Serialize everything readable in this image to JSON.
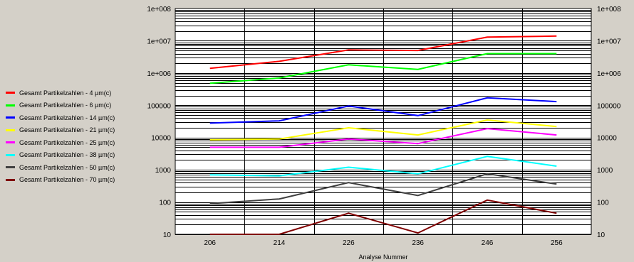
{
  "chart_data": {
    "type": "line",
    "yscale": "log",
    "ylim": [
      10,
      100000000
    ],
    "xlabel": "Analyse Nummer",
    "ylabel": "",
    "grid": true,
    "legend_position": "left",
    "categories": [
      "206",
      "214",
      "226",
      "236",
      "246",
      "256"
    ],
    "yticks": [
      "10",
      "100",
      "1000",
      "10000",
      "100000",
      "1e+006",
      "1e+007",
      "1e+008"
    ],
    "series": [
      {
        "name": "Gesamt Partikelzahlen - 4 µm(c)",
        "color": "#ff0000",
        "values": [
          1400000,
          2300000,
          5200000,
          5000000,
          13000000,
          14000000
        ]
      },
      {
        "name": "Gesamt Partikelzahlen - 6 µm(c)",
        "color": "#00ff00",
        "values": [
          480000,
          700000,
          1800000,
          1300000,
          4000000,
          4000000
        ]
      },
      {
        "name": "Gesamt Partikelzahlen - 14 µm(c)",
        "color": "#0000ff",
        "values": [
          28000,
          33000,
          95000,
          48000,
          170000,
          130000
        ]
      },
      {
        "name": "Gesamt Partikelzahlen - 21 µm(c)",
        "color": "#ffff00",
        "values": [
          8500,
          9000,
          20000,
          12000,
          35000,
          22000
        ]
      },
      {
        "name": "Gesamt Partikelzahlen - 25 µm(c)",
        "color": "#ff00ff",
        "values": [
          5000,
          5000,
          9000,
          6500,
          19000,
          12000
        ]
      },
      {
        "name": "Gesamt Partikelzahlen - 38 µm(c)",
        "color": "#00ffff",
        "values": [
          700,
          650,
          1200,
          750,
          2600,
          1300
        ]
      },
      {
        "name": "Gesamt Partikelzahlen - 50 µm(c)",
        "color": "#404040",
        "values": [
          90,
          125,
          400,
          160,
          750,
          360
        ]
      },
      {
        "name": "Gesamt Partikelzahlen - 70 µm(c)",
        "color": "#800000",
        "values": [
          10,
          10,
          45,
          11,
          115,
          45
        ]
      }
    ]
  }
}
